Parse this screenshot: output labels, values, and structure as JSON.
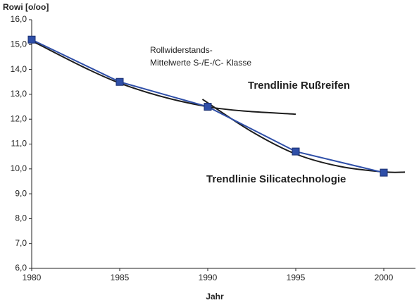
{
  "chart_data": {
    "type": "line",
    "y_label": "Rowi [o/oo]",
    "x_label": "Jahr",
    "annotations": [
      "Rollwiderstands-",
      "Mittelwerte S-/E-/C- Klasse",
      "Trendlinie Rußreifen",
      "Trendlinie Silicatechnologie"
    ],
    "xlim": [
      1980,
      2001.8
    ],
    "xticks": [
      1980,
      1985,
      1990,
      1995,
      2000
    ],
    "ylim": [
      6,
      16
    ],
    "yticks": [
      {
        "value": 6,
        "label": "6,0"
      },
      {
        "value": 7,
        "label": "7,0"
      },
      {
        "value": 8,
        "label": "8,0"
      },
      {
        "value": 9,
        "label": "9,0"
      },
      {
        "value": 10,
        "label": "10,0"
      },
      {
        "value": 11,
        "label": "11,0"
      },
      {
        "value": 12,
        "label": "12,0"
      },
      {
        "value": 13,
        "label": "13,0"
      },
      {
        "value": 14,
        "label": "14,0"
      },
      {
        "value": 15,
        "label": "15,0"
      },
      {
        "value": 16,
        "label": "16,0"
      }
    ],
    "grid": false,
    "series": [
      {
        "color": "#1c1c1c",
        "x": [
          1980,
          1985,
          1990,
          1995
        ],
        "values": [
          15.15,
          13.45,
          12.5,
          12.2
        ],
        "smooth": true,
        "markers": false
      },
      {
        "color": "#1c1c1c",
        "x": [
          1989.7,
          1992.5,
          1995,
          1997.5,
          2000,
          2001.2
        ],
        "values": [
          12.8,
          11.5,
          10.6,
          10.1,
          9.88,
          9.87
        ],
        "smooth": true,
        "markers": false
      },
      {
        "color": "#2f4fa8",
        "x": [
          1980,
          1985,
          1990,
          1995,
          2000
        ],
        "values": [
          15.2,
          13.5,
          12.5,
          10.7,
          9.85
        ],
        "smooth": false,
        "markers": true
      }
    ]
  }
}
